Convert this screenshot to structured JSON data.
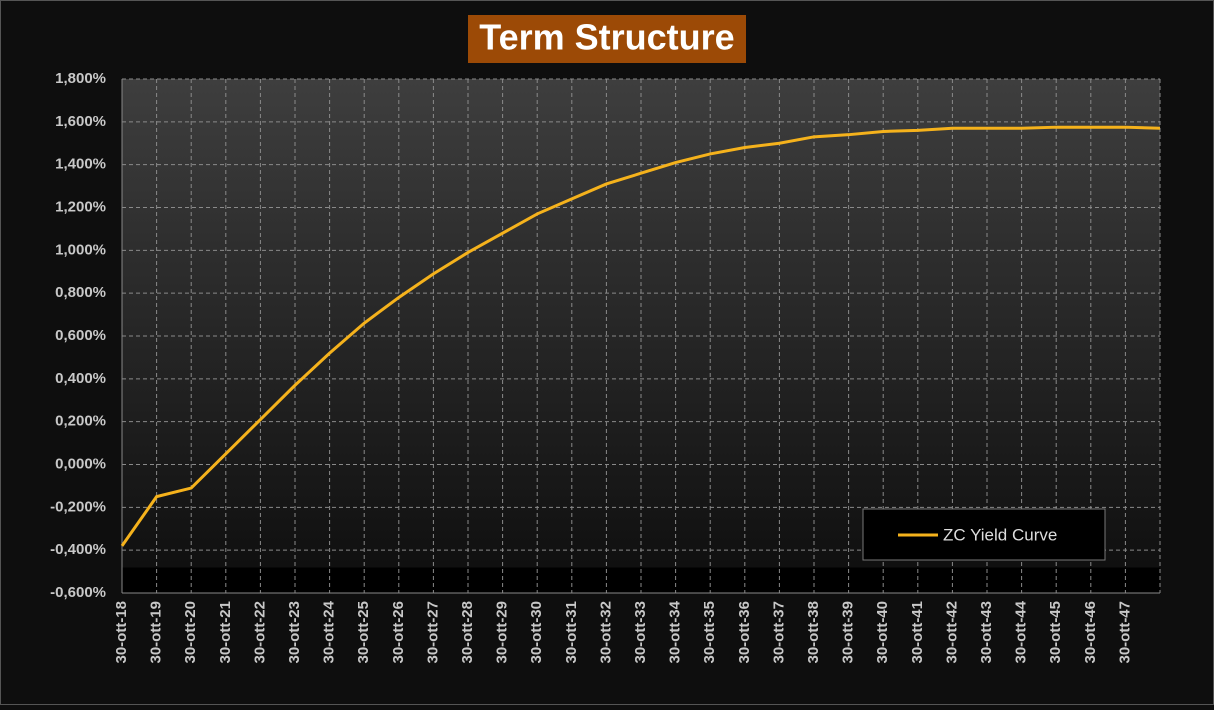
{
  "chart_data": {
    "type": "line",
    "title": "Term Structure",
    "categories": [
      "30-ott-18",
      "30-ott-19",
      "30-ott-20",
      "30-ott-21",
      "30-ott-22",
      "30-ott-23",
      "30-ott-24",
      "30-ott-25",
      "30-ott-26",
      "30-ott-27",
      "30-ott-28",
      "30-ott-29",
      "30-ott-30",
      "30-ott-31",
      "30-ott-32",
      "30-ott-33",
      "30-ott-34",
      "30-ott-35",
      "30-ott-36",
      "30-ott-37",
      "30-ott-38",
      "30-ott-39",
      "30-ott-40",
      "30-ott-41",
      "30-ott-42",
      "30-ott-43",
      "30-ott-44",
      "30-ott-45",
      "30-ott-46",
      "30-ott-47",
      null
    ],
    "series": [
      {
        "name": "ZC Yield Curve",
        "color": "#f5b21c",
        "values": [
          -0.38,
          -0.15,
          -0.11,
          0.05,
          0.21,
          0.37,
          0.52,
          0.66,
          0.78,
          0.89,
          0.99,
          1.08,
          1.17,
          1.24,
          1.31,
          1.36,
          1.41,
          1.45,
          1.48,
          1.5,
          1.53,
          1.54,
          1.555,
          1.56,
          1.57,
          1.57,
          1.57,
          1.575,
          1.575,
          1.575,
          1.57
        ]
      }
    ],
    "ylim": [
      -0.6,
      1.8
    ],
    "yticks": [
      {
        "value": -0.6,
        "label": "-0,600%"
      },
      {
        "value": -0.4,
        "label": "-0,400%"
      },
      {
        "value": -0.2,
        "label": "-0,200%"
      },
      {
        "value": 0,
        "label": "0,000%"
      },
      {
        "value": 0.2,
        "label": "0,200%"
      },
      {
        "value": 0.4,
        "label": "0,400%"
      },
      {
        "value": 0.6,
        "label": "0,600%"
      },
      {
        "value": 0.8,
        "label": "0,800%"
      },
      {
        "value": 1,
        "label": "1,000%"
      },
      {
        "value": 1.2,
        "label": "1,200%"
      },
      {
        "value": 1.4,
        "label": "1,400%"
      },
      {
        "value": 1.6,
        "label": "1,600%"
      },
      {
        "value": 1.8,
        "label": "1,800%"
      }
    ],
    "grid": true,
    "legend": "bottom-right"
  }
}
